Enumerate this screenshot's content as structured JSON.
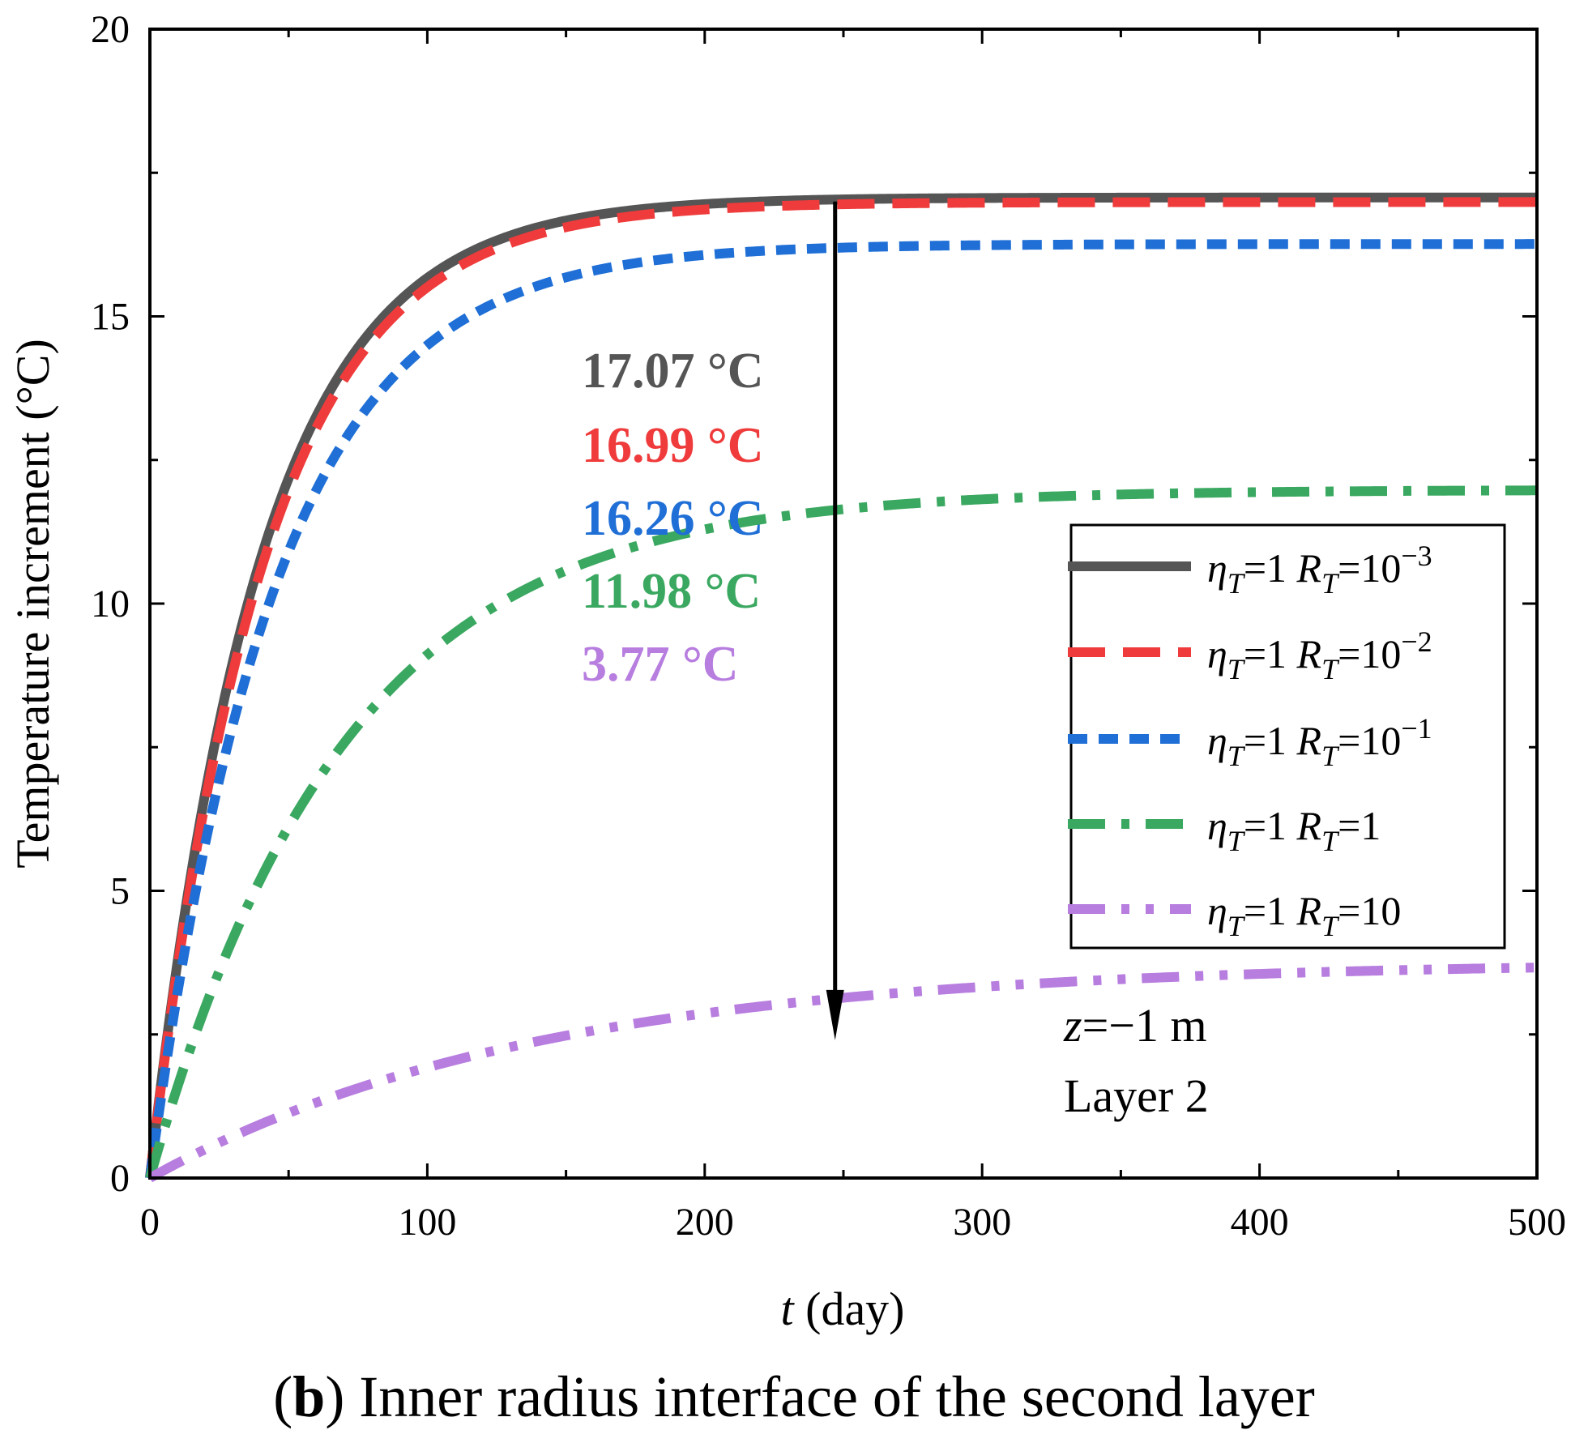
{
  "chart_data": {
    "type": "line",
    "title": "",
    "xlabel_var": "t",
    "xlabel_unit": " (day)",
    "ylabel": "Temperature increment (°C)",
    "xlim": [
      0,
      500
    ],
    "ylim": [
      0,
      20
    ],
    "xticks": [
      0,
      100,
      200,
      300,
      400,
      500
    ],
    "yticks": [
      0,
      5,
      10,
      15,
      20
    ],
    "grid": false,
    "legend_position": "right-middle",
    "series": [
      {
        "name": "ηT=1 RT=10^-3",
        "eta": "η",
        "eta_sub": "T",
        "eq1": "=1 ",
        "r": "R",
        "r_sub": "T",
        "eq2": "=10",
        "sup": "−3",
        "color": "#555555",
        "dash": "solid",
        "tau": 40,
        "final": 17.07,
        "final_label": "17.07 °C"
      },
      {
        "name": "ηT=1 RT=10^-2",
        "eta": "η",
        "eta_sub": "T",
        "eq1": "=1 ",
        "r": "R",
        "r_sub": "T",
        "eq2": "=10",
        "sup": "−2",
        "color": "#ef3b3b",
        "dash": "long-dash",
        "tau": 41,
        "final": 16.99,
        "final_label": "16.99 °C"
      },
      {
        "name": "ηT=1 RT=10^-1",
        "eta": "η",
        "eta_sub": "T",
        "eq1": "=1 ",
        "r": "R",
        "r_sub": "T",
        "eq2": "=10",
        "sup": "−1",
        "color": "#1f6fd6",
        "dash": "short-dash",
        "tau": 45,
        "final": 16.26,
        "final_label": "16.26 °C"
      },
      {
        "name": "ηT=1 RT=1",
        "eta": "η",
        "eta_sub": "T",
        "eq1": "=1 ",
        "r": "R",
        "r_sub": "T",
        "eq2": "=1",
        "sup": "",
        "color": "#3aa860",
        "dash": "dash-dot",
        "tau": 70,
        "final": 11.98,
        "final_label": "11.98 °C"
      },
      {
        "name": "ηT=1 RT=10",
        "eta": "η",
        "eta_sub": "T",
        "eq1": "=1 ",
        "r": "R",
        "r_sub": "T",
        "eq2": "=10",
        "sup": "",
        "color": "#b77ddf",
        "dash": "dash-dot-dot",
        "tau": 140,
        "final": 3.77,
        "final_label": "3.77 °C"
      }
    ],
    "arrow": {
      "x": 247,
      "y_from": 17.0,
      "y_to": 2.4
    },
    "info_z_var": "z",
    "info_z_rest": "=−1 m",
    "info_layer": "Layer 2",
    "caption_bold": "b",
    "caption_rest": ") Inner radius interface of the second layer",
    "caption_open": "("
  }
}
